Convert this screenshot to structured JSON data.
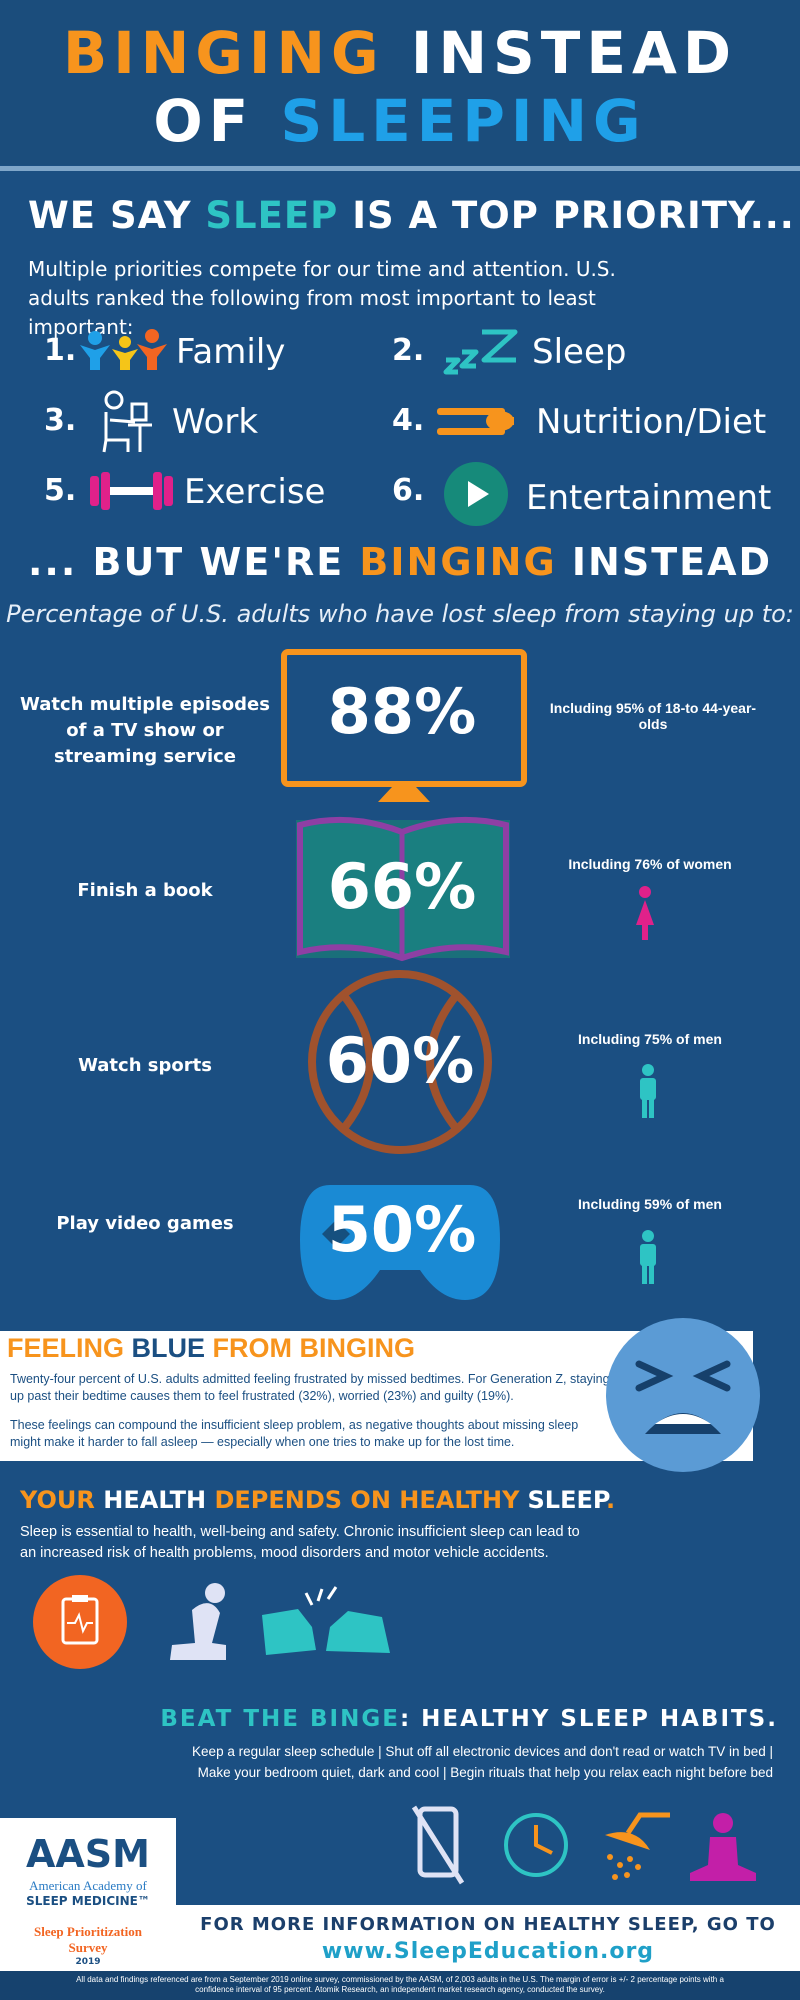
{
  "header": {
    "title_parts": [
      "BINGING",
      "INSTEAD",
      "OF",
      "SLEEPING"
    ]
  },
  "priorities": {
    "heading_parts": [
      "WE SAY",
      "SLEEP",
      "IS A TOP PRIORITY..."
    ],
    "intro": "Multiple priorities compete for our time and attention. U.S. adults ranked the following from most important to least important:",
    "items": [
      {
        "rank": "1.",
        "label": "Family"
      },
      {
        "rank": "2.",
        "label": "Sleep"
      },
      {
        "rank": "3.",
        "label": "Work"
      },
      {
        "rank": "4.",
        "label": "Nutrition/Diet"
      },
      {
        "rank": "5.",
        "label": "Exercise"
      },
      {
        "rank": "6.",
        "label": "Entertainment"
      }
    ]
  },
  "binging": {
    "heading_parts": [
      "... BUT WE'RE",
      "BINGING",
      "INSTEAD"
    ],
    "subtitle": "Percentage of U.S. adults who have lost sleep from staying up to:",
    "items": [
      {
        "activity": "Watch multiple episodes of a TV show or streaming service",
        "percent": "88%",
        "detail": "Including 95% of 18-to 44-year-olds"
      },
      {
        "activity": "Finish a book",
        "percent": "66%",
        "detail": "Including 76% of women"
      },
      {
        "activity": "Watch sports",
        "percent": "60%",
        "detail": "Including 75% of men"
      },
      {
        "activity": "Play video games",
        "percent": "50%",
        "detail": "Including 59% of men"
      }
    ]
  },
  "feeling_blue": {
    "heading_parts": [
      "FEELING",
      "BLUE",
      "FROM BINGING"
    ],
    "paragraphs": [
      "Twenty-four percent of U.S. adults admitted feeling frustrated by missed bedtimes. For Generation Z, staying up past their bedtime causes them to feel frustrated (32%), worried (23%) and guilty (19%).",
      "These feelings can compound the insufficient sleep problem, as negative thoughts about missing sleep might make it harder to fall asleep — especially when one tries to make up for the lost time."
    ]
  },
  "health": {
    "heading_parts": [
      "YOUR",
      "HEALTH",
      "DEPENDS ON",
      "HEALTHY",
      "SLEEP",
      "."
    ],
    "text": "Sleep is essential to health, well-being and safety. Chronic insufficient sleep can lead to an increased risk of health problems, mood disorders and motor vehicle accidents."
  },
  "beat": {
    "heading_parts": [
      "BEAT THE BINGE",
      ": HEALTHY SLEEP HABITS."
    ],
    "lines": [
      "Keep a regular sleep schedule | Shut off all electronic devices and don't read or watch TV in bed |",
      "Make your bedroom quiet, dark and cool |  Begin rituals that help you relax each night before bed"
    ]
  },
  "footer": {
    "logo": "AASM",
    "org_lines": [
      "American Academy of",
      "SLEEP MEDICINE™"
    ],
    "survey_lines": [
      "Sleep Prioritization",
      "Survey"
    ],
    "year": "2019",
    "cta": "FOR MORE INFORMATION ON HEALTHY SLEEP, GO TO",
    "url": "www.SleepEducation.org",
    "disclaimer": "All data and findings referenced are from a September 2019 online survey, commissioned by the AASM, of 2,003 adults in the U.S. The margin of error is +/- 2 percentage points with a confidence interval of 95 percent. Atomik Research, an independent market research agency, conducted the survey."
  }
}
